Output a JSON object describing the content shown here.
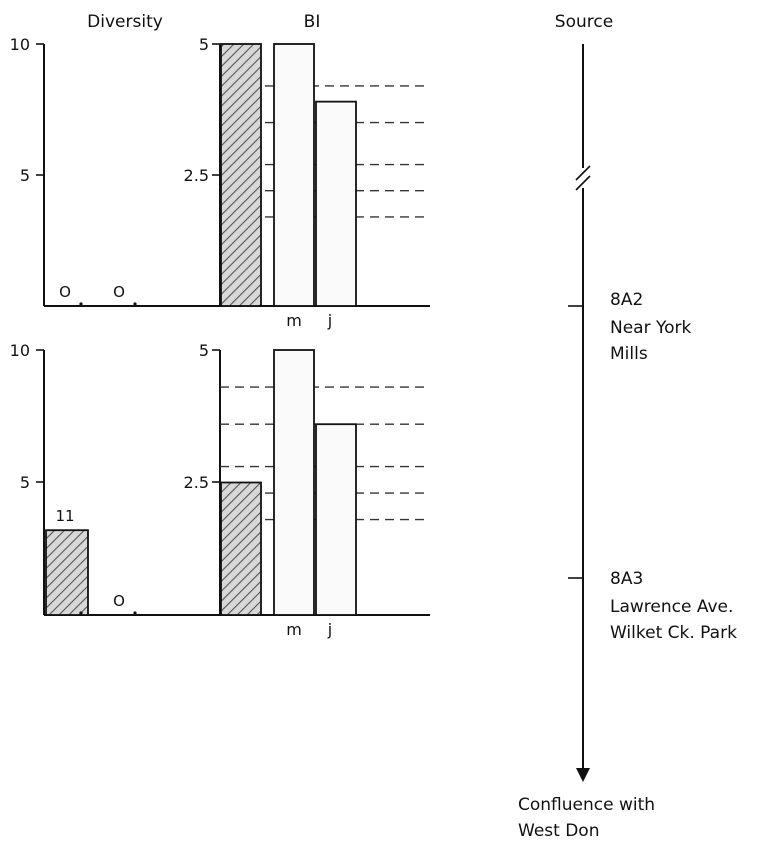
{
  "headers": {
    "diversity": "Diversity",
    "bi": "BI",
    "source": "Source"
  },
  "chart_data": [
    {
      "type": "bar",
      "panel": "upper",
      "diversity": {
        "ticks": [
          "10",
          "5"
        ],
        "ylim": [
          0,
          10
        ],
        "values": [
          0,
          0
        ],
        "value_labels": [
          "O",
          "O"
        ]
      },
      "bi": {
        "ticks": [
          "5",
          "2.5"
        ],
        "ylim": [
          0,
          5
        ],
        "categories": [
          "",
          "m",
          "j"
        ],
        "values": [
          5.0,
          5.0,
          3.9
        ],
        "hatched": [
          true,
          false,
          false
        ],
        "reference_lines": [
          4.2,
          3.5,
          2.7,
          2.2,
          1.7
        ]
      }
    },
    {
      "type": "bar",
      "panel": "lower",
      "diversity": {
        "ticks": [
          "10",
          "5"
        ],
        "ylim": [
          0,
          10
        ],
        "values": [
          3.2,
          0
        ],
        "value_labels": [
          "11",
          "O"
        ]
      },
      "bi": {
        "ticks": [
          "5",
          "2.5"
        ],
        "ylim": [
          0,
          5
        ],
        "categories": [
          "",
          "m",
          "j"
        ],
        "values": [
          2.5,
          5.0,
          3.6
        ],
        "hatched": [
          true,
          false,
          false
        ],
        "reference_lines": [
          4.3,
          3.6,
          2.8,
          2.3,
          1.8
        ]
      }
    }
  ],
  "stream": {
    "stations": [
      {
        "code": "8A2",
        "line1": "Near York",
        "line2": "Mills"
      },
      {
        "code": "8A3",
        "line1": "Lawrence Ave.",
        "line2": "Wilket Ck. Park"
      }
    ],
    "end_line1": "Confluence with",
    "end_line2": "West Don"
  }
}
